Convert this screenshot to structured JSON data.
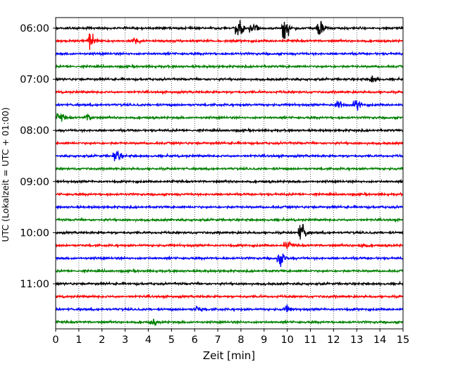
{
  "chart_data": {
    "type": "line",
    "title": "",
    "xlabel": "Zeit  [min]",
    "ylabel": "UTC (Lokalzeit = UTC + 01:00)",
    "xlim": [
      0,
      15
    ],
    "x_ticks": [
      "0",
      "1",
      "2",
      "3",
      "4",
      "5",
      "6",
      "7",
      "8",
      "9",
      "10",
      "11",
      "12",
      "13",
      "14",
      "15"
    ],
    "y_tick_labels": [
      {
        "label": "06:00",
        "trace_index": 0
      },
      {
        "label": "07:00",
        "trace_index": 4
      },
      {
        "label": "08:00",
        "trace_index": 8
      },
      {
        "label": "09:00",
        "trace_index": 12
      },
      {
        "label": "10:00",
        "trace_index": 16
      },
      {
        "label": "11:00",
        "trace_index": 20
      }
    ],
    "trace_interval_minutes": 15,
    "grid_x": true,
    "colors": [
      "#000000",
      "#ff0000",
      "#0000ff",
      "#008000"
    ],
    "series": [
      {
        "start": "06:00",
        "color": "#000000",
        "events": [
          {
            "t": 7.9,
            "amp": 2.6
          },
          {
            "t": 8.5,
            "amp": 1.8
          },
          {
            "t": 9.9,
            "amp": 3.2
          },
          {
            "t": 11.4,
            "amp": 2.8
          }
        ]
      },
      {
        "start": "06:15",
        "color": "#ff0000",
        "events": [
          {
            "t": 1.5,
            "amp": 3.0
          },
          {
            "t": 3.4,
            "amp": 1.0
          }
        ]
      },
      {
        "start": "06:30",
        "color": "#0000ff",
        "events": []
      },
      {
        "start": "06:45",
        "color": "#008000",
        "events": []
      },
      {
        "start": "07:00",
        "color": "#000000",
        "events": [
          {
            "t": 13.7,
            "amp": 1.0
          }
        ]
      },
      {
        "start": "07:15",
        "color": "#ff0000",
        "events": []
      },
      {
        "start": "07:30",
        "color": "#0000ff",
        "events": [
          {
            "t": 12.2,
            "amp": 1.7
          },
          {
            "t": 13.0,
            "amp": 1.5
          }
        ]
      },
      {
        "start": "07:45",
        "color": "#008000",
        "events": [
          {
            "t": 0.2,
            "amp": 1.3
          },
          {
            "t": 1.4,
            "amp": 1.0
          }
        ]
      },
      {
        "start": "08:00",
        "color": "#000000",
        "events": []
      },
      {
        "start": "08:15",
        "color": "#ff0000",
        "events": []
      },
      {
        "start": "08:30",
        "color": "#0000ff",
        "events": [
          {
            "t": 2.6,
            "amp": 1.8
          }
        ]
      },
      {
        "start": "08:45",
        "color": "#008000",
        "events": []
      },
      {
        "start": "09:00",
        "color": "#000000",
        "events": []
      },
      {
        "start": "09:15",
        "color": "#ff0000",
        "events": []
      },
      {
        "start": "09:30",
        "color": "#0000ff",
        "events": []
      },
      {
        "start": "09:45",
        "color": "#008000",
        "events": []
      },
      {
        "start": "10:00",
        "color": "#000000",
        "events": [
          {
            "t": 10.6,
            "amp": 2.8
          }
        ]
      },
      {
        "start": "10:15",
        "color": "#ff0000",
        "events": [
          {
            "t": 10.0,
            "amp": 1.0
          },
          {
            "t": 13.2,
            "amp": 0.8
          }
        ]
      },
      {
        "start": "10:30",
        "color": "#0000ff",
        "events": [
          {
            "t": 9.7,
            "amp": 2.2
          }
        ]
      },
      {
        "start": "10:45",
        "color": "#008000",
        "events": []
      },
      {
        "start": "11:00",
        "color": "#000000",
        "events": []
      },
      {
        "start": "11:15",
        "color": "#ff0000",
        "events": []
      },
      {
        "start": "11:30",
        "color": "#0000ff",
        "events": [
          {
            "t": 6.1,
            "amp": 0.8
          },
          {
            "t": 10.0,
            "amp": 0.8
          }
        ]
      },
      {
        "start": "11:45",
        "color": "#008000",
        "events": [
          {
            "t": 4.2,
            "amp": 0.8
          }
        ]
      }
    ]
  }
}
